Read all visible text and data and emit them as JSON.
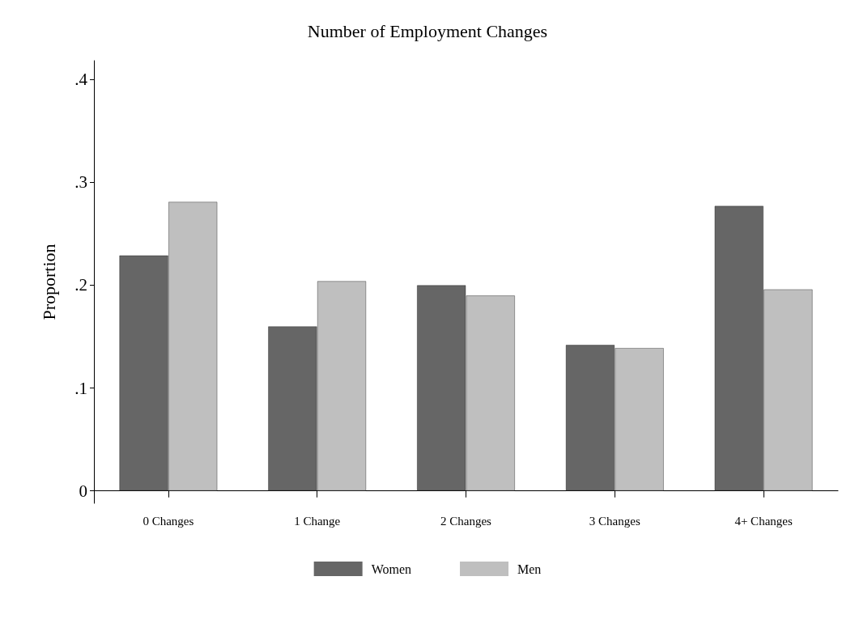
{
  "chart_data": {
    "type": "bar",
    "title": "Number of Employment Changes",
    "ylabel": "Proportion",
    "categories": [
      "0 Changes",
      "1 Change",
      "2 Changes",
      "3 Changes",
      "4+ Changes"
    ],
    "series": [
      {
        "name": "Women",
        "color": "#666666",
        "values": [
          0.229,
          0.16,
          0.2,
          0.142,
          0.277
        ]
      },
      {
        "name": "Men",
        "color": "#bfbfbf",
        "values": [
          0.281,
          0.204,
          0.19,
          0.139,
          0.196
        ]
      }
    ],
    "ylim": [
      -0.012,
      0.418
    ],
    "yticks": [
      {
        "value": 0,
        "label": "0"
      },
      {
        "value": 0.1,
        "label": ".1"
      },
      {
        "value": 0.2,
        "label": ".2"
      },
      {
        "value": 0.3,
        "label": ".3"
      },
      {
        "value": 0.4,
        "label": ".4"
      }
    ],
    "grid": false,
    "legend": "bottom"
  }
}
